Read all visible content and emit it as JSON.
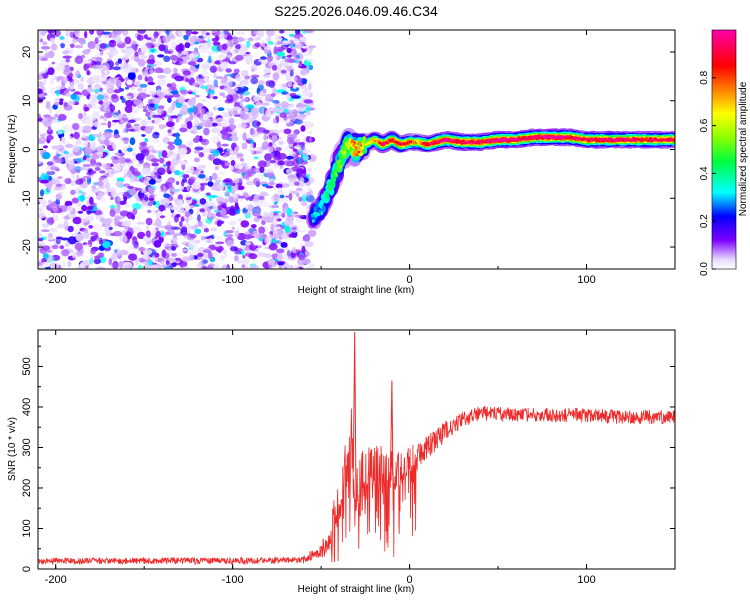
{
  "figure_title": "S225.2026.046.09.46.C34",
  "chart_data": [
    {
      "type": "heatmap",
      "title": "S225.2026.046.09.46.C34",
      "xlabel": "Height of straight line (km)",
      "ylabel": "Frequency (Hz)",
      "xlim": [
        -210,
        150
      ],
      "ylim": [
        -24.5,
        24.5
      ],
      "xticks": [
        -200,
        -100,
        0,
        100
      ],
      "yticks": [
        -20,
        -10,
        0,
        10,
        20
      ],
      "noise_region": {
        "x": [
          -210,
          -55
        ],
        "y": [
          -24.5,
          24.5
        ],
        "amplitude_range": [
          0.02,
          0.35
        ]
      },
      "ridge": {
        "x": [
          -55,
          -50,
          -45,
          -40,
          -35,
          -30,
          -25,
          -20,
          -15,
          -10,
          -5,
          0,
          5,
          10,
          20,
          30,
          40,
          50,
          60,
          70,
          80,
          90,
          100,
          110,
          120,
          130,
          140,
          150
        ],
        "frequency": [
          -14,
          -12,
          -8,
          -3,
          1,
          0,
          1,
          2,
          1,
          2,
          1,
          1.5,
          1.5,
          1,
          2,
          1.5,
          1.5,
          2,
          2,
          2.5,
          2.5,
          2.5,
          2,
          2,
          2,
          2,
          2,
          2
        ],
        "amplitude": [
          0.3,
          0.35,
          0.45,
          0.55,
          0.6,
          0.85,
          0.6,
          0.7,
          0.9,
          0.85,
          0.9,
          0.85,
          0.7,
          0.9,
          0.95,
          0.95,
          0.95,
          1.0,
          0.95,
          0.95,
          1.0,
          0.95,
          0.9,
          0.95,
          0.95,
          0.9,
          0.9,
          0.9
        ]
      },
      "colorbar": {
        "label": "Normalized spectral amplitude",
        "range": [
          0.0,
          1.0
        ],
        "ticks": [
          0.0,
          0.2,
          0.4,
          0.6,
          0.8
        ],
        "tick_labels": [
          "0.0",
          "0.2",
          "0.4",
          "0.6",
          "0.8"
        ],
        "colormap": "rainbow"
      }
    },
    {
      "type": "line",
      "xlabel": "Height of straight line (km)",
      "ylabel": "SNR (10 * v/v)",
      "xlim": [
        -210,
        150
      ],
      "ylim": [
        0,
        590
      ],
      "xticks": [
        -200,
        -100,
        0,
        100
      ],
      "yticks": [
        0,
        100,
        200,
        300,
        400,
        500
      ],
      "grid": false,
      "series": [
        {
          "name": "SNR",
          "color": "#ee2b2b",
          "x": [
            -210,
            -180,
            -150,
            -120,
            -90,
            -60,
            -45,
            -42,
            -38,
            -35,
            -33,
            -31,
            -28,
            -24,
            -20,
            -14,
            -10,
            -5,
            0,
            10,
            20,
            30,
            40,
            60,
            80,
            100,
            120,
            150
          ],
          "values": [
            20,
            20,
            20,
            20,
            20,
            22,
            60,
            150,
            200,
            260,
            300,
            240,
            210,
            220,
            240,
            250,
            240,
            250,
            270,
            300,
            340,
            370,
            385,
            380,
            380,
            380,
            375,
            375
          ],
          "noise": [
            8,
            8,
            8,
            8,
            8,
            8,
            30,
            70,
            90,
            100,
            100,
            90,
            80,
            80,
            70,
            60,
            55,
            45,
            35,
            30,
            25,
            20,
            18,
            18,
            18,
            18,
            18,
            18
          ]
        }
      ],
      "spikes": [
        {
          "x": -31,
          "value": 585
        },
        {
          "x": -10,
          "value": 465
        }
      ]
    }
  ]
}
